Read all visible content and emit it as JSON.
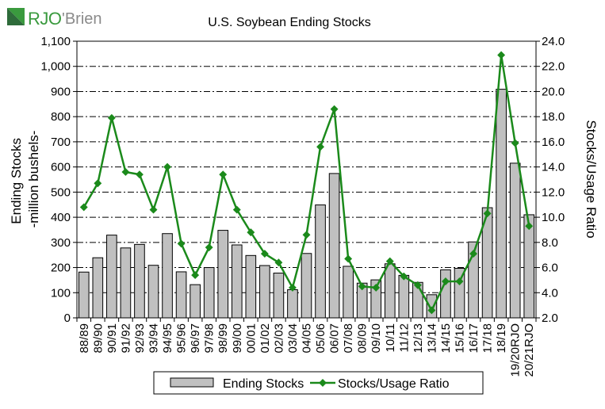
{
  "logo": {
    "text_main": "RJO",
    "text_secondary": "'Brien",
    "colors": {
      "green": "#3a9a3e",
      "dark_green": "#2e6b3a",
      "gray": "#8a8a8a"
    }
  },
  "chart_data": {
    "type": "bar",
    "title": "U.S. Soybean Ending Stocks",
    "ylabel": "Ending Stocks\n-million bushels-",
    "y2label": "Stocks/Usage Ratio",
    "xlabel": "",
    "ylim": [
      0,
      1100
    ],
    "y2lim": [
      2.0,
      24.0
    ],
    "yticks": [
      "0",
      "100",
      "200",
      "300",
      "400",
      "500",
      "600",
      "700",
      "800",
      "900",
      "1,000",
      "1,100"
    ],
    "y2ticks": [
      "2.0",
      "4.0",
      "6.0",
      "8.0",
      "10.0",
      "12.0",
      "14.0",
      "16.0",
      "18.0",
      "20.0",
      "22.0",
      "24.0"
    ],
    "grid": true,
    "legend_placement": "bottom",
    "categories": [
      "88/89",
      "89/90",
      "90/91",
      "91/92",
      "92/93",
      "93/94",
      "94/95",
      "95/96",
      "96/97",
      "97/98",
      "98/99",
      "99/00",
      "00/01",
      "01/02",
      "02/03",
      "03/04",
      "04/05",
      "05/06",
      "06/07",
      "07/08",
      "08/09",
      "09/10",
      "10/11",
      "11/12",
      "12/13",
      "13/14",
      "14/15",
      "15/16",
      "16/17",
      "17/18",
      "18/19",
      "19/20RJO",
      "20/21RJO"
    ],
    "series": [
      {
        "name": "Ending Stocks",
        "kind": "bar",
        "axis": "left",
        "color": "#c0c0c0",
        "values": [
          182,
          239,
          329,
          278,
          292,
          209,
          335,
          183,
          132,
          200,
          348,
          290,
          248,
          208,
          178,
          112,
          256,
          449,
          574,
          205,
          138,
          151,
          215,
          169,
          141,
          92,
          191,
          197,
          302,
          438,
          909,
          615,
          410
        ]
      },
      {
        "name": "Stocks/Usage Ratio",
        "kind": "line",
        "axis": "right",
        "color": "#1b8a1b",
        "values": [
          10.8,
          12.7,
          17.9,
          13.6,
          13.4,
          10.6,
          14.0,
          7.9,
          5.4,
          7.6,
          13.4,
          10.6,
          8.8,
          7.1,
          6.4,
          4.4,
          8.6,
          15.6,
          18.6,
          6.7,
          4.5,
          4.4,
          6.5,
          5.3,
          4.6,
          2.6,
          4.9,
          4.9,
          7.1,
          10.3,
          22.9,
          15.9,
          9.3
        ]
      }
    ]
  }
}
